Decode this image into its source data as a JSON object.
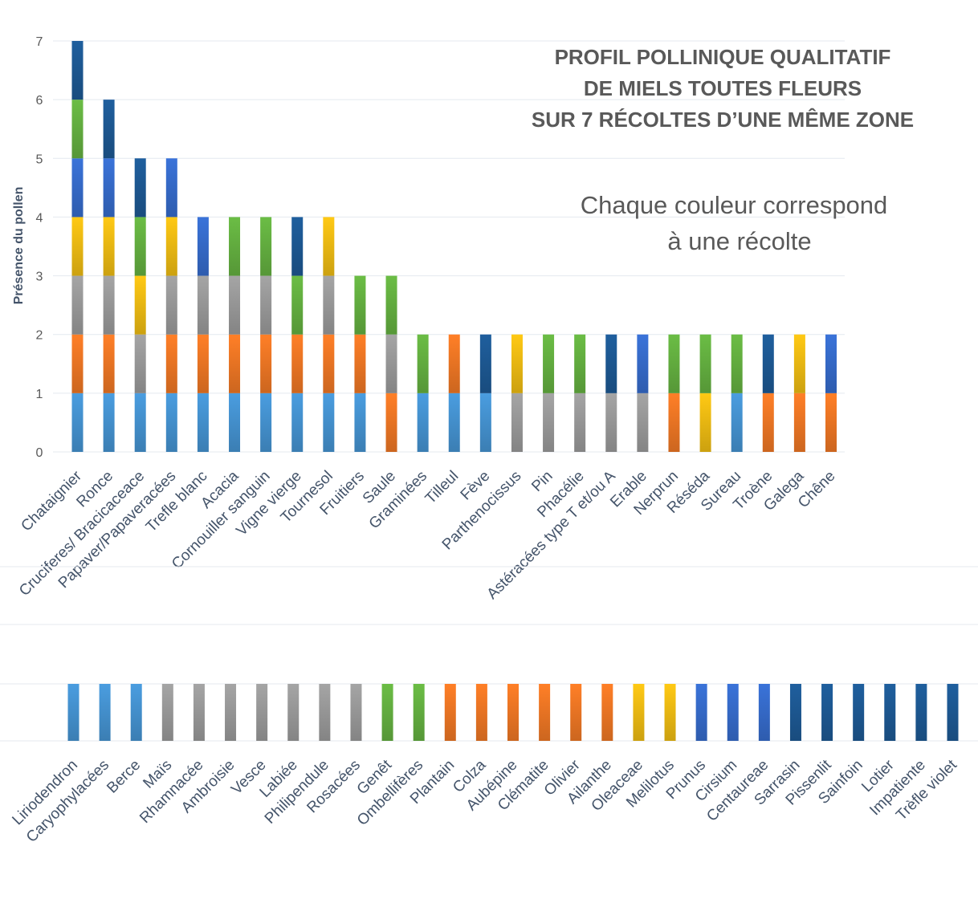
{
  "chart_data": [
    {
      "type": "bar",
      "stacked": true,
      "title": "PROFIL POLLINIQUE QUALITATIF DE MIELS TOUTES FLEURS SUR 7 RÉCOLTES D’UNE MÊME ZONE",
      "title_lines": [
        "PROFIL POLLINIQUE QUALITATIF",
        "DE MIELS TOUTES FLEURS",
        "SUR 7 RÉCOLTES D’UNE MÊME ZONE"
      ],
      "annotation_lines": [
        "Chaque couleur correspond",
        "à une récolte"
      ],
      "ylabel": "Présence du pollen",
      "ylim": [
        0,
        7
      ],
      "yticks": [
        0,
        1,
        2,
        3,
        4,
        5,
        6,
        7
      ],
      "grid": true,
      "series_colors": {
        "1": "#4a9de0",
        "2": "#ff7f27",
        "3": "#a5a5a5",
        "4": "#ffc914",
        "5": "#3a73d9",
        "6": "#6bbd45",
        "7": "#1f5f9e"
      },
      "categories": [
        "Chataignier",
        "Ronce",
        "Cruciferes/ Bracicaceace",
        "Papaver/Papaveracées",
        "Trefle blanc",
        "Acacia",
        "Cornouiller sanguin",
        "Vigne vierge",
        "Tournesol",
        "Fruitiers",
        "Saule",
        "Graminées",
        "Tilleul",
        "Fève",
        "Parthenocissus",
        "Pin",
        "Phacélie",
        "Astéracées type T et/ou A",
        "Erable",
        "Nerprun",
        "Réséda",
        "Sureau",
        "Troène",
        "Galega",
        "Chêne"
      ],
      "stacks": [
        [
          1,
          2,
          3,
          4,
          5,
          6,
          7
        ],
        [
          1,
          2,
          3,
          4,
          5,
          7
        ],
        [
          1,
          3,
          4,
          6,
          7
        ],
        [
          1,
          2,
          3,
          4,
          5
        ],
        [
          1,
          2,
          3,
          5
        ],
        [
          1,
          2,
          3,
          6
        ],
        [
          1,
          2,
          3,
          6
        ],
        [
          1,
          2,
          6,
          7
        ],
        [
          1,
          2,
          3,
          4
        ],
        [
          1,
          2,
          6
        ],
        [
          2,
          3,
          6
        ],
        [
          1,
          6
        ],
        [
          1,
          2
        ],
        [
          1,
          7
        ],
        [
          3,
          4
        ],
        [
          3,
          6
        ],
        [
          3,
          6
        ],
        [
          3,
          7
        ],
        [
          3,
          5
        ],
        [
          2,
          6
        ],
        [
          4,
          6
        ],
        [
          1,
          6
        ],
        [
          2,
          7
        ],
        [
          2,
          4
        ],
        [
          2,
          5
        ]
      ]
    },
    {
      "type": "bar",
      "categories": [
        "Liriodendron",
        "Caryophylacées",
        "Berce",
        "Maïs",
        "Rhamnacée",
        "Ambroisie",
        "Vesce",
        "Labiée",
        "Philipendule",
        "Rosacées",
        "Genêt",
        "Ombellifères",
        "Plantain",
        "Colza",
        "Aubépine",
        "Clématite",
        "Olivier",
        "Ailanthe",
        "Oleaceae",
        "Melilotus",
        "Prunus",
        "Cirsium",
        "Centaureae",
        "Sarrasin",
        "Pissenlit",
        "Sainfoin",
        "Lotier",
        "Impatiente",
        "Trèfle violet"
      ],
      "values": [
        1,
        1,
        1,
        1,
        1,
        1,
        1,
        1,
        1,
        1,
        1,
        1,
        1,
        1,
        1,
        1,
        1,
        1,
        1,
        1,
        1,
        1,
        1,
        1,
        1,
        1,
        1,
        1,
        1
      ],
      "harvest": [
        1,
        1,
        1,
        3,
        3,
        3,
        3,
        3,
        3,
        3,
        6,
        6,
        2,
        2,
        2,
        2,
        2,
        2,
        4,
        4,
        5,
        5,
        5,
        7,
        7,
        7,
        7,
        7,
        7
      ]
    }
  ]
}
